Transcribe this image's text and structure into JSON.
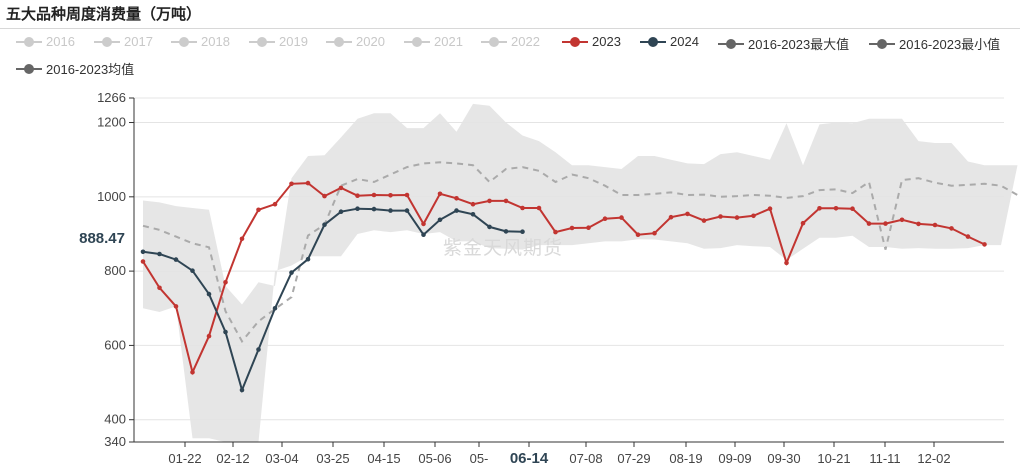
{
  "header": {
    "title": "五大品种周度消费量（万吨）"
  },
  "watermark": "紫金天风期货",
  "legend": [
    {
      "label": "2016",
      "color": "#cccccc",
      "active": false
    },
    {
      "label": "2017",
      "color": "#cccccc",
      "active": false
    },
    {
      "label": "2018",
      "color": "#cccccc",
      "active": false
    },
    {
      "label": "2019",
      "color": "#cccccc",
      "active": false
    },
    {
      "label": "2020",
      "color": "#cccccc",
      "active": false
    },
    {
      "label": "2021",
      "color": "#cccccc",
      "active": false
    },
    {
      "label": "2022",
      "color": "#cccccc",
      "active": false
    },
    {
      "label": "2023",
      "color": "#c23531",
      "active": true
    },
    {
      "label": "2024",
      "color": "#2f4554",
      "active": true
    },
    {
      "label": "2016-2023最大值",
      "color": "#666666",
      "active": true
    },
    {
      "label": "2016-2023最小值",
      "color": "#666666",
      "active": true
    },
    {
      "label": "2016-2023均值",
      "color": "#666666",
      "active": true
    }
  ],
  "chart_data": {
    "type": "line",
    "ylim": [
      340,
      1266
    ],
    "yticks": [
      "340",
      "400",
      "600",
      "800",
      "1000",
      "1200",
      "1266"
    ],
    "y_pointer_label": "888.47",
    "y_pointer_value": 888.47,
    "xticks": [
      "01-22",
      "02-12",
      "03-04",
      "03-25",
      "04-15",
      "05-06",
      "05-",
      "06-14",
      "07-08",
      "07-29",
      "08-19",
      "09-09",
      "09-30",
      "10-21",
      "11-11",
      "12-02"
    ],
    "x_pointer_label": "06-14",
    "series": [
      {
        "name": "2023",
        "color": "#c23531",
        "values": [
          826,
          755,
          705,
          528,
          625,
          770,
          887,
          965,
          980,
          1035,
          1037,
          1002,
          1024,
          1003,
          1005,
          1004,
          1005,
          927,
          1008,
          996,
          980,
          989,
          989,
          970,
          970,
          905,
          916,
          917,
          941,
          944,
          898,
          902,
          945,
          954,
          936,
          947,
          944,
          949,
          968,
          822,
          929,
          969,
          969,
          968,
          928,
          928,
          938,
          927,
          924,
          915,
          893,
          872
        ]
      },
      {
        "name": "2024",
        "color": "#2f4554",
        "values": [
          852,
          846,
          831,
          801,
          738,
          636,
          480,
          589,
          700,
          796,
          832,
          925,
          960,
          968,
          967,
          963,
          963,
          898,
          938,
          963,
          953,
          919,
          907,
          906
        ]
      },
      {
        "name": "2016-2023均值",
        "color": "#aaaaaa",
        "values": [
          922,
          911,
          893,
          875,
          864,
          692,
          611,
          665,
          698,
          730,
          896,
          925,
          1030,
          1048,
          1040,
          1060,
          1080,
          1090,
          1093,
          1090,
          1085,
          1040,
          1075,
          1080,
          1070,
          1040,
          1060,
          1050,
          1030,
          1005,
          1005,
          1008,
          1012,
          1005,
          1006,
          1000,
          1002,
          1005,
          1003,
          997,
          1002,
          1018,
          1020,
          1010,
          1040,
          858,
          1045,
          1050,
          1038,
          1030,
          1032,
          1035,
          1030,
          1005,
          1000,
          995,
          990,
          978,
          962,
          942
        ]
      },
      {
        "name": "2016-2023最大值",
        "color": "#e6e6e6",
        "values": [
          990,
          985,
          975,
          970,
          965,
          760,
          710,
          770,
          760,
          1050,
          1110,
          1112,
          1160,
          1210,
          1225,
          1225,
          1185,
          1185,
          1225,
          1175,
          1250,
          1245,
          1200,
          1165,
          1150,
          1120,
          1085,
          1085,
          1080,
          1075,
          1110,
          1110,
          1100,
          1090,
          1088,
          1115,
          1120,
          1110,
          1100,
          1198,
          1085,
          1195,
          1200,
          1198,
          1210,
          1210,
          1210,
          1150,
          1145,
          1145,
          1095,
          1085,
          1085,
          1085
        ]
      },
      {
        "name": "2016-2023最小值",
        "color": "#e6e6e6",
        "values": [
          700,
          690,
          705,
          350,
          350,
          340,
          340,
          340,
          800,
          815,
          840,
          840,
          840,
          900,
          910,
          905,
          910,
          900,
          905,
          880,
          880,
          862,
          860,
          858,
          870,
          870,
          870,
          875,
          880,
          880,
          886,
          885,
          880,
          875,
          860,
          862,
          870,
          867,
          865,
          830,
          860,
          890,
          890,
          895,
          865,
          865,
          860,
          862,
          860,
          860,
          862,
          870,
          870
        ]
      }
    ]
  }
}
